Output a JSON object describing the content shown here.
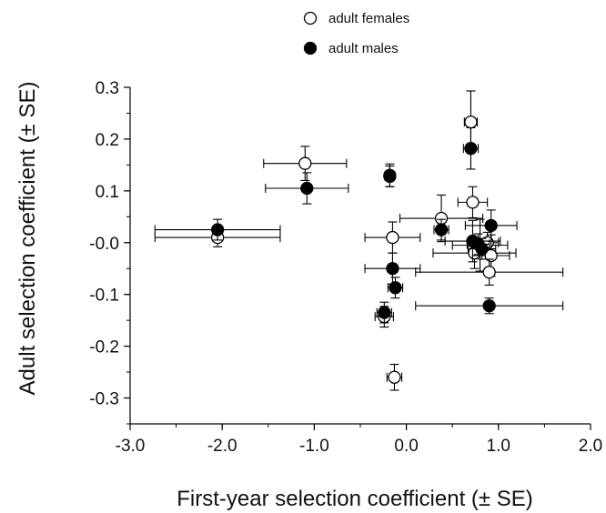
{
  "chart_data": {
    "type": "scatter",
    "xlabel": "First-year selection coefficient (± SE)",
    "ylabel": "Adult selection coefficient (± SE)",
    "xlim": [
      -3.0,
      2.0
    ],
    "ylim": [
      -0.35,
      0.3
    ],
    "x_ticks": [
      -3.0,
      -2.0,
      -1.0,
      0.0,
      1.0,
      2.0
    ],
    "x_tick_labels": [
      "-3.0",
      "-2.0",
      "-1.0",
      "0.0",
      "1.0",
      "2.0"
    ],
    "y_ticks": [
      -0.3,
      -0.2,
      -0.1,
      0.0,
      0.1,
      0.2,
      0.3
    ],
    "y_tick_labels": [
      "-0.3",
      "-0.2",
      "-0.1",
      "-0.0",
      "0.1",
      "0.2",
      "0.3"
    ],
    "grid": false,
    "legend_position": "top-center",
    "series": [
      {
        "name": "adult females",
        "marker": "open-circle",
        "color": "#000000",
        "points": [
          {
            "x": 0.7,
            "y": 0.233,
            "xerr": 0.07,
            "yerr": 0.06
          },
          {
            "x": -1.1,
            "y": 0.153,
            "xerr": 0.45,
            "yerr": 0.033
          },
          {
            "x": -0.18,
            "y": 0.128,
            "xerr": 0.05,
            "yerr": 0.02
          },
          {
            "x": 0.72,
            "y": 0.078,
            "xerr": 0.16,
            "yerr": 0.03
          },
          {
            "x": 0.38,
            "y": 0.047,
            "xerr": 0.45,
            "yerr": 0.045
          },
          {
            "x": -2.05,
            "y": 0.01,
            "xerr": 0.68,
            "yerr": 0.018
          },
          {
            "x": -0.15,
            "y": 0.01,
            "xerr": 0.3,
            "yerr": 0.03
          },
          {
            "x": 0.8,
            "y": -0.005,
            "xerr": 0.3,
            "yerr": 0.05
          },
          {
            "x": 0.88,
            "y": 0.0,
            "xerr": 0.12,
            "yerr": 0.02
          },
          {
            "x": 0.74,
            "y": -0.02,
            "xerr": 0.45,
            "yerr": 0.03
          },
          {
            "x": 0.92,
            "y": -0.025,
            "xerr": 0.2,
            "yerr": 0.04
          },
          {
            "x": 0.9,
            "y": -0.057,
            "xerr": 0.8,
            "yerr": 0.025
          },
          {
            "x": -0.24,
            "y": -0.143,
            "xerr": 0.1,
            "yerr": 0.02
          },
          {
            "x": -0.13,
            "y": -0.26,
            "xerr": 0.08,
            "yerr": 0.025
          }
        ]
      },
      {
        "name": "adult males",
        "marker": "filled-circle",
        "color": "#000000",
        "points": [
          {
            "x": 0.7,
            "y": 0.182,
            "xerr": 0.08,
            "yerr": 0.04
          },
          {
            "x": -0.18,
            "y": 0.13,
            "xerr": 0.05,
            "yerr": 0.022
          },
          {
            "x": -1.08,
            "y": 0.105,
            "xerr": 0.45,
            "yerr": 0.03
          },
          {
            "x": -2.05,
            "y": 0.025,
            "xerr": 0.68,
            "yerr": 0.02
          },
          {
            "x": 0.38,
            "y": 0.025,
            "xerr": 0.08,
            "yerr": 0.02
          },
          {
            "x": 0.92,
            "y": 0.033,
            "xerr": 0.28,
            "yerr": 0.03
          },
          {
            "x": 0.72,
            "y": 0.003,
            "xerr": 0.3,
            "yerr": 0.04
          },
          {
            "x": 0.78,
            "y": -0.003,
            "xerr": 0.12,
            "yerr": 0.02
          },
          {
            "x": 0.82,
            "y": -0.012,
            "xerr": 0.15,
            "yerr": 0.02
          },
          {
            "x": -0.15,
            "y": -0.05,
            "xerr": 0.3,
            "yerr": 0.03
          },
          {
            "x": -0.12,
            "y": -0.087,
            "xerr": 0.08,
            "yerr": 0.02
          },
          {
            "x": 0.9,
            "y": -0.122,
            "xerr": 0.8,
            "yerr": 0.015
          },
          {
            "x": -0.24,
            "y": -0.135,
            "xerr": 0.08,
            "yerr": 0.02
          }
        ]
      }
    ]
  }
}
